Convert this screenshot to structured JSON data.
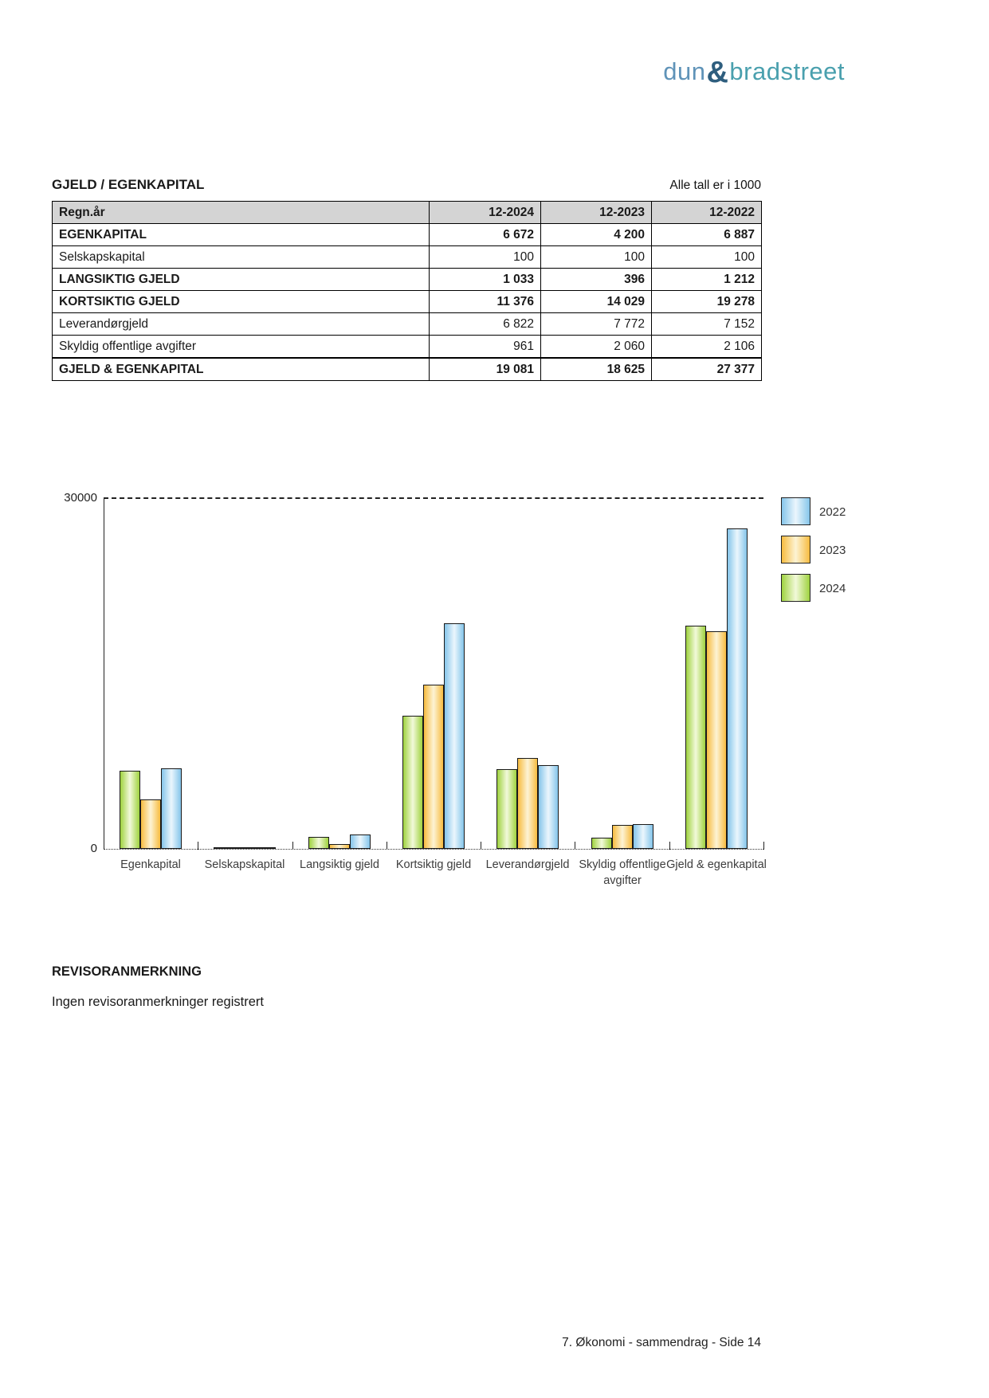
{
  "logo": {
    "dun": "dun",
    "ampersand": "&",
    "bradstreet": "bradstreet"
  },
  "section": {
    "title": "GJELD / EGENKAPITAL",
    "note": "Alle tall er i 1000"
  },
  "table": {
    "headers": [
      "Regn.år",
      "12-2024",
      "12-2023",
      "12-2022"
    ],
    "rows": [
      {
        "label": "EGENKAPITAL",
        "values": [
          "6 672",
          "4 200",
          "6 887"
        ],
        "bold": true,
        "total": false
      },
      {
        "label": "Selskapskapital",
        "values": [
          "100",
          "100",
          "100"
        ],
        "bold": false,
        "total": false
      },
      {
        "label": "LANGSIKTIG GJELD",
        "values": [
          "1 033",
          "396",
          "1 212"
        ],
        "bold": true,
        "total": false
      },
      {
        "label": "KORTSIKTIG GJELD",
        "values": [
          "11 376",
          "14 029",
          "19 278"
        ],
        "bold": true,
        "total": false
      },
      {
        "label": "Leverandørgjeld",
        "values": [
          "6 822",
          "7 772",
          "7 152"
        ],
        "bold": false,
        "total": false
      },
      {
        "label": "Skyldig offentlige avgifter",
        "values": [
          "961",
          "2 060",
          "2 106"
        ],
        "bold": false,
        "total": false
      },
      {
        "label": "GJELD & EGENKAPITAL",
        "values": [
          "19 081",
          "18 625",
          "27 377"
        ],
        "bold": true,
        "total": true
      }
    ]
  },
  "chart_data": {
    "type": "bar",
    "title": "",
    "xlabel": "",
    "ylabel": "",
    "ylim": [
      0,
      30000
    ],
    "yticks": [
      "30000",
      "0"
    ],
    "grid": "top-dashed-line-only",
    "legend_position": "top-right",
    "legend": [
      "2022",
      "2023",
      "2024"
    ],
    "categories": [
      "Egenkapital",
      "Selskapskapital",
      "Langsiktig gjeld",
      "Kortsiktig gjeld",
      "Leverandørgjeld",
      "Skyldig offentlige avgifter",
      "Gjeld & egenkapital"
    ],
    "series": [
      {
        "name": "2024",
        "color_edge": "#9fd23f",
        "color_mid": "#f2f9da",
        "values": [
          6672,
          100,
          1033,
          11376,
          6822,
          961,
          19081
        ]
      },
      {
        "name": "2023",
        "color_edge": "#f7bc40",
        "color_mid": "#fdf3d4",
        "values": [
          4200,
          100,
          396,
          14029,
          7772,
          2060,
          18625
        ]
      },
      {
        "name": "2022",
        "color_edge": "#85c5ea",
        "color_mid": "#ebf6fd",
        "values": [
          6887,
          100,
          1212,
          19278,
          7152,
          2106,
          27377
        ]
      }
    ]
  },
  "revisor": {
    "heading": "REVISORANMERKNING",
    "body": "Ingen revisoranmerkninger registrert"
  },
  "footer": {
    "text": "7. Økonomi - sammendrag - Side 14"
  }
}
